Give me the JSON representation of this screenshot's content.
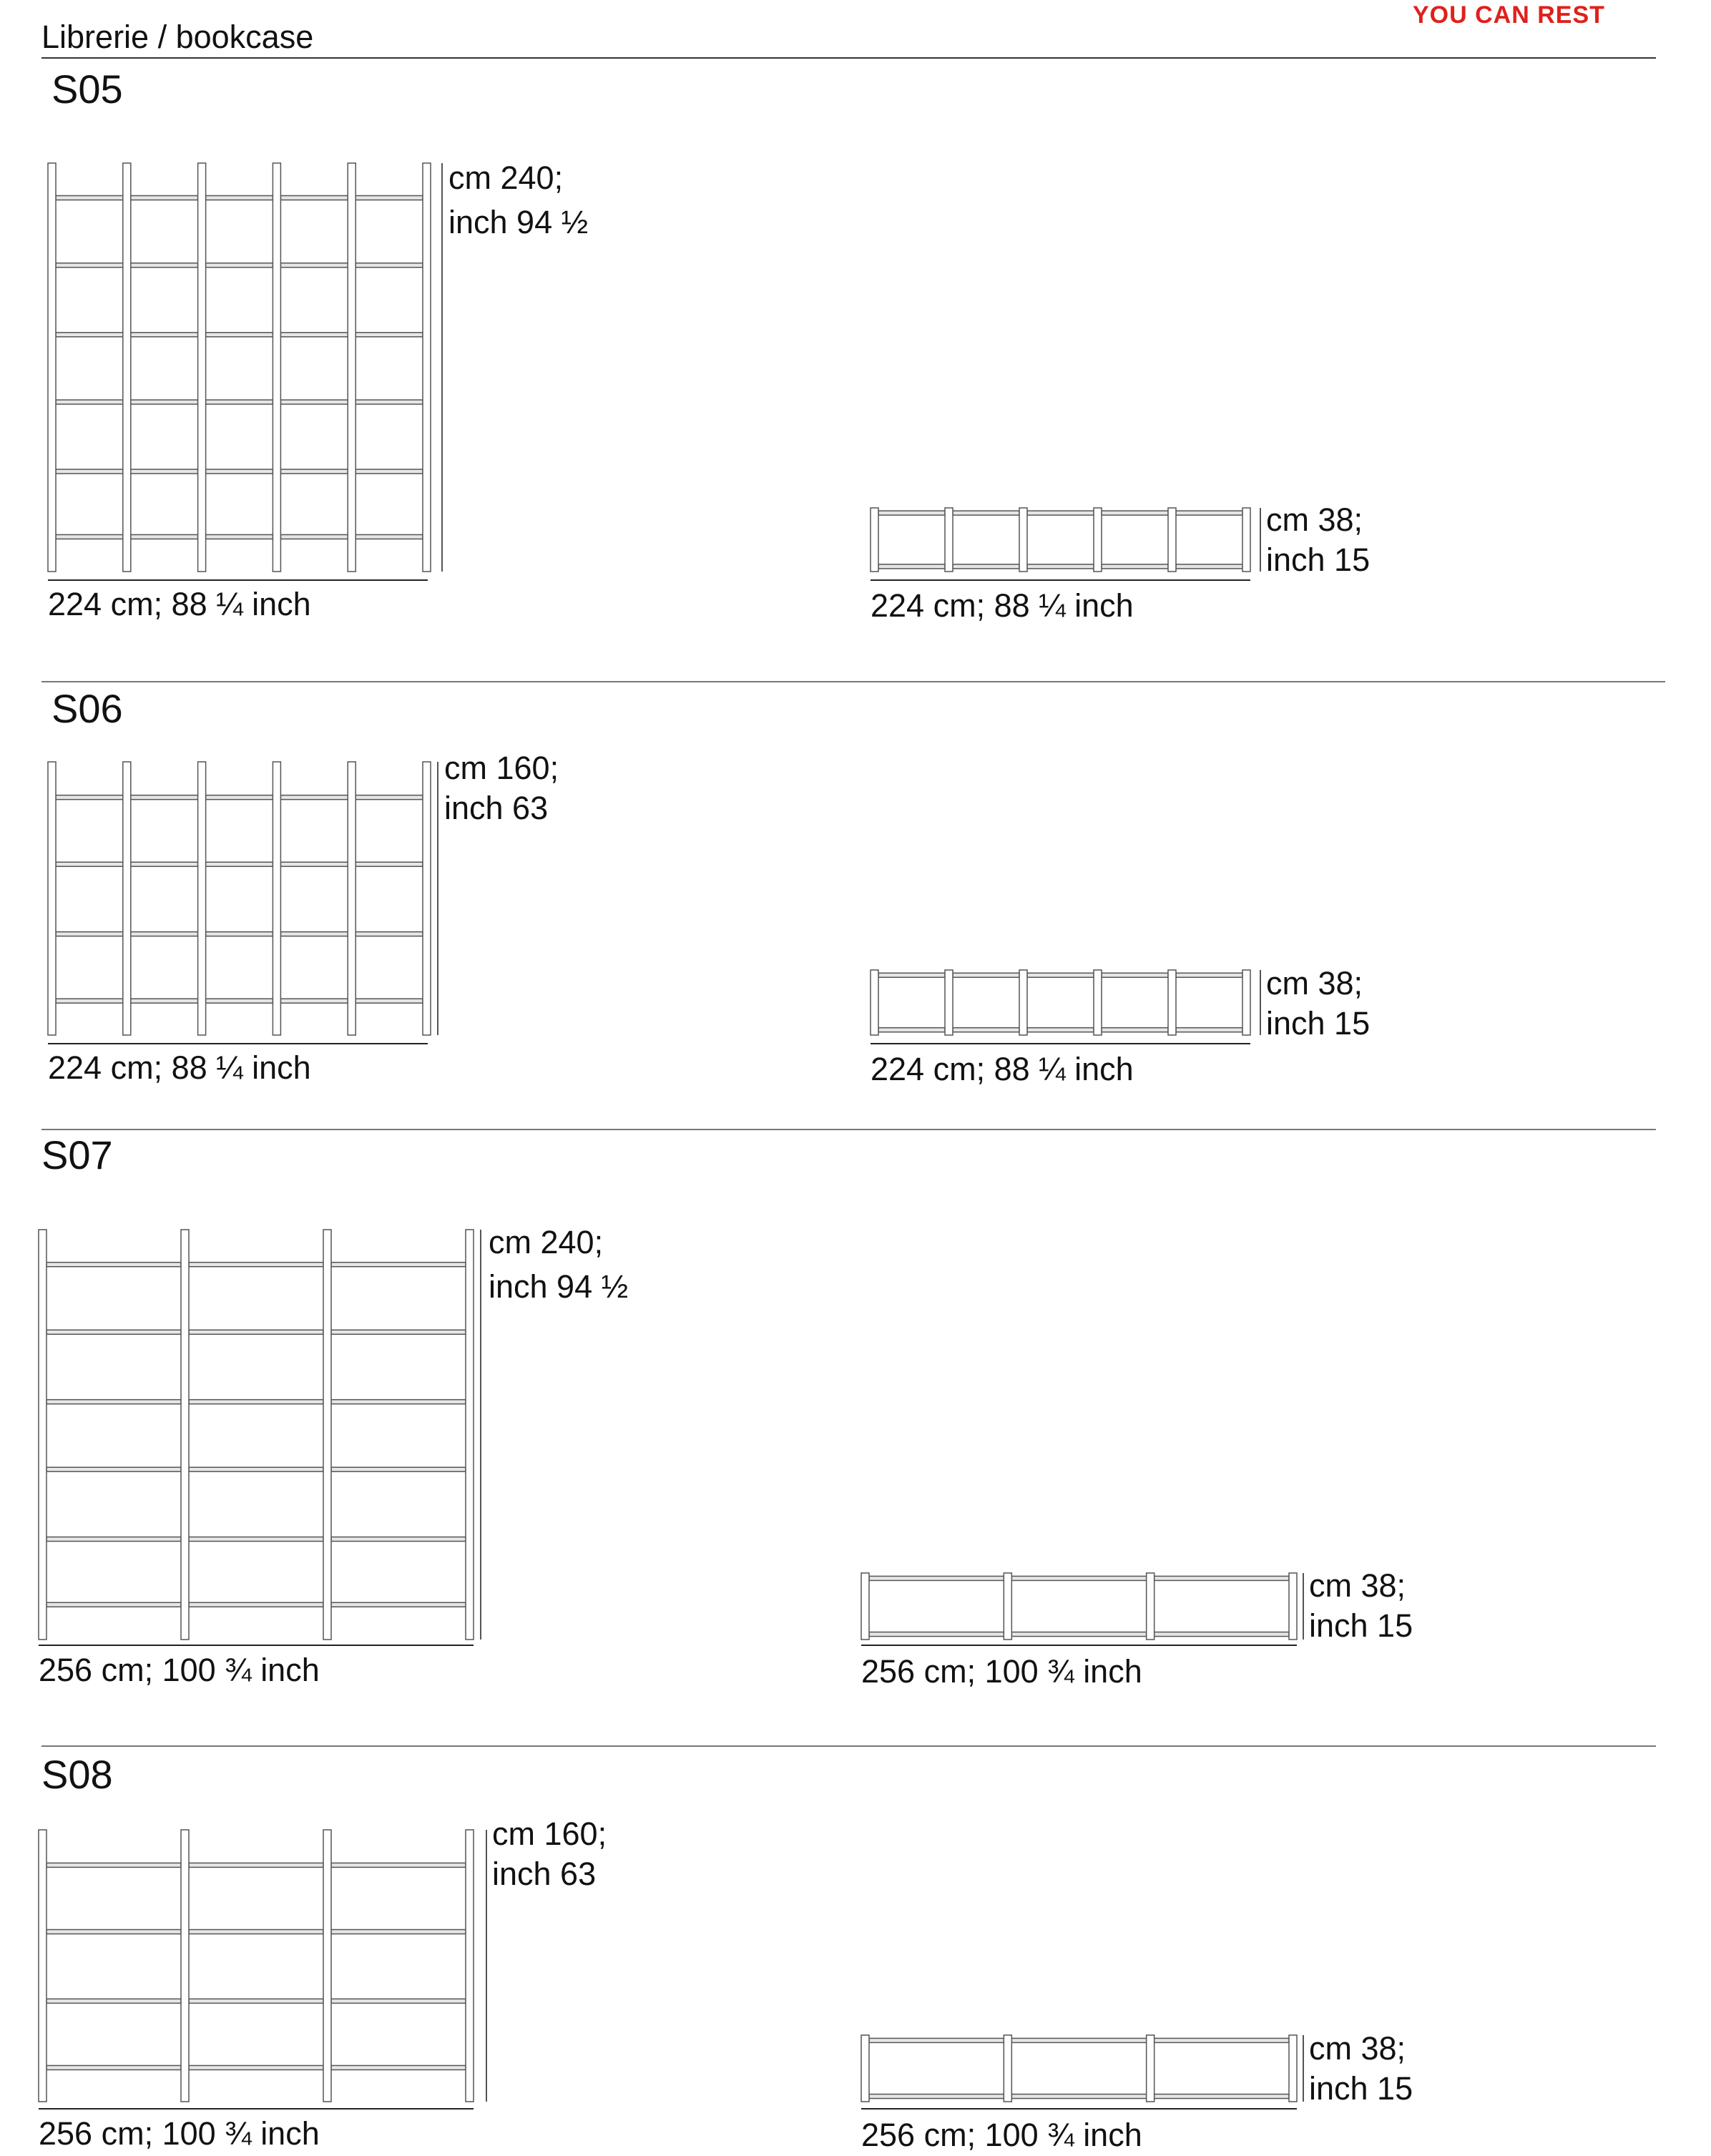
{
  "header": {
    "breadcrumb": "Librerie / bookcase",
    "brand": "YOU CAN REST",
    "brand_color": "#e0201b"
  },
  "sections": [
    {
      "code": "S05",
      "front": {
        "height_cm": "cm 240;",
        "height_inch": "inch 94 ½",
        "width": "224 cm; 88 ¼ inch"
      },
      "side": {
        "depth_cm": "cm 38;",
        "depth_inch": "inch 15",
        "width": "224 cm; 88 ¼ inch"
      }
    },
    {
      "code": "S06",
      "front": {
        "height_cm": "cm 160;",
        "height_inch": "inch 63",
        "width": "224 cm; 88 ¼ inch"
      },
      "side": {
        "depth_cm": "cm 38;",
        "depth_inch": "inch 15",
        "width": "224 cm; 88 ¼ inch"
      }
    },
    {
      "code": "S07",
      "front": {
        "height_cm": "cm 240;",
        "height_inch": "inch 94 ½",
        "width": "256 cm; 100 ¾ inch"
      },
      "side": {
        "depth_cm": "cm 38;",
        "depth_inch": "inch 15",
        "width": "256 cm; 100 ¾ inch"
      }
    },
    {
      "code": "S08",
      "front": {
        "height_cm": "cm 160;",
        "height_inch": "inch 63",
        "width": "256 cm; 100 ¾ inch"
      },
      "side": {
        "depth_cm": "cm 38;",
        "depth_inch": "inch 15",
        "width": "256 cm; 100 ¾ inch"
      }
    }
  ]
}
